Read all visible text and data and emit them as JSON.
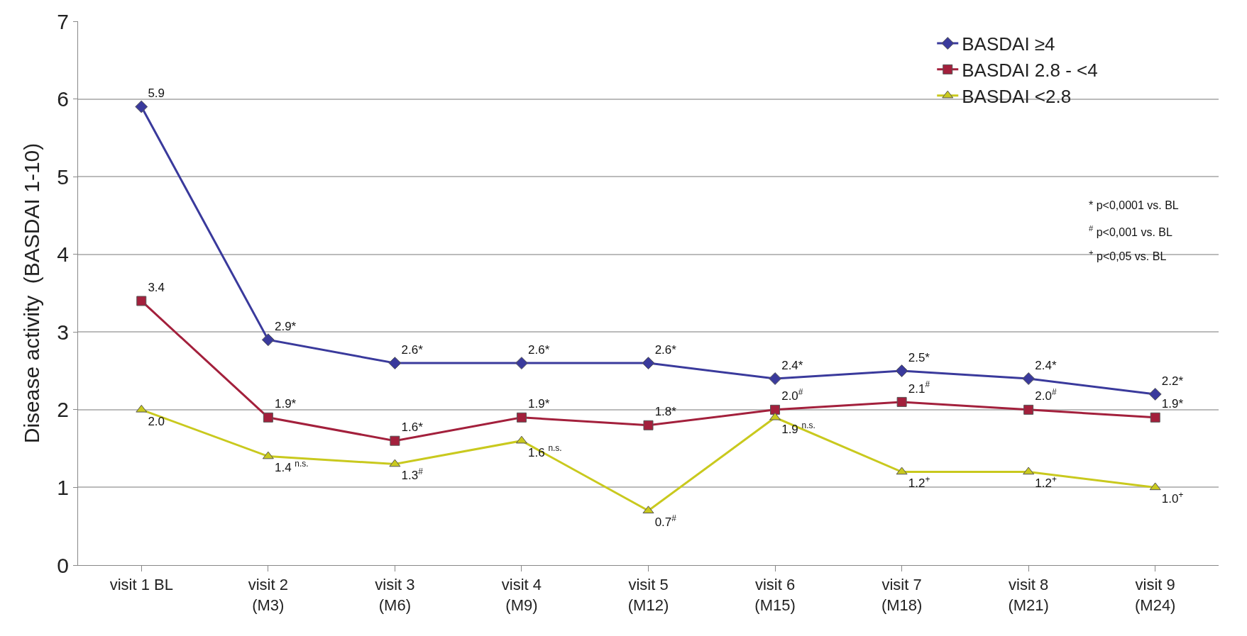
{
  "chart_data": {
    "type": "line",
    "ylabel": "Disease activity  (BASDAI 1-10)",
    "categories": [
      "visit 1 BL",
      "visit 2 (M3)",
      "visit 3 (M6)",
      "visit 4 (M9)",
      "visit 5 (M12)",
      "visit 6 (M15)",
      "visit 7 (M18)",
      "visit 8 (M21)",
      "visit 9 (M24)"
    ],
    "series": [
      {
        "name": "BASDAI ≥4",
        "color": "#3a3a9c",
        "marker": "diamond",
        "values": [
          5.9,
          2.9,
          2.6,
          2.6,
          2.6,
          2.4,
          2.5,
          2.4,
          2.2
        ],
        "value_labels": [
          "5.9",
          "2.9*",
          "2.6*",
          "2.6*",
          "2.6*",
          "2.4*",
          "2.5*",
          "2.4*",
          "2.2*"
        ]
      },
      {
        "name": "BASDAI 2.8 - <4",
        "color": "#a3203c",
        "marker": "square",
        "values": [
          3.4,
          1.9,
          1.6,
          1.9,
          1.8,
          2.0,
          2.1,
          2.0,
          1.9
        ],
        "value_labels": [
          "3.4",
          "1.9*",
          "1.6*",
          "1.9*",
          "1.8*",
          "2.0$^{#}$",
          "2.1$^{#}$",
          "2.0$^{#}$",
          "1.9*"
        ]
      },
      {
        "name": "BASDAI <2.8",
        "color": "#c9c91e",
        "marker": "triangle",
        "values": [
          2.0,
          1.4,
          1.3,
          1.6,
          0.7,
          1.9,
          1.2,
          1.2,
          1.0
        ],
        "value_labels": [
          "2.0",
          "1.4 $^{n.s.}$",
          "1.3$^{#}$",
          "1.6 $^{n.s.}$",
          "0.7$^{#}$",
          "1.9 $^{n.s.}$",
          "1.2$^{+}$",
          "1.2$^{+}$",
          "1.0$^{+}$"
        ]
      }
    ],
    "ylim": [
      0,
      7
    ],
    "yticks": [
      0,
      1,
      2,
      3,
      4,
      5,
      6,
      7
    ],
    "grid": "y",
    "legend": "top right",
    "line_style": "solid",
    "annotations": [
      "* p<0,0001 vs. BL",
      "$^{#}$ p<0,001 vs. BL",
      "$^{+}$ p<0,05 vs. BL"
    ]
  }
}
